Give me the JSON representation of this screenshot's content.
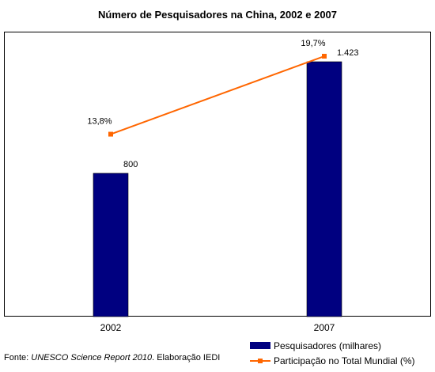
{
  "chart_data": {
    "type": "bar",
    "title": "Número de Pesquisadores na China, 2002 e 2007",
    "categories": [
      "2002",
      "2007"
    ],
    "series": [
      {
        "name": "Pesquisadores (milhares)",
        "kind": "bar",
        "values": [
          800,
          1423
        ],
        "data_labels": [
          "800",
          "1.423"
        ],
        "color": "#000080"
      },
      {
        "name": "Participação no Total Mundial (%)",
        "kind": "line",
        "values": [
          13.8,
          19.7
        ],
        "data_labels": [
          "13,8%",
          "19,7%"
        ],
        "color": "#ff6600"
      }
    ],
    "ylim": [
      0,
      1500
    ],
    "ylim_secondary": [
      0,
      21
    ],
    "grid": false,
    "legend": "bottom-right"
  },
  "source": {
    "prefix": "Fonte: ",
    "italic": "UNESCO Science Report 2010",
    "suffix": ". Elaboração IEDI"
  }
}
